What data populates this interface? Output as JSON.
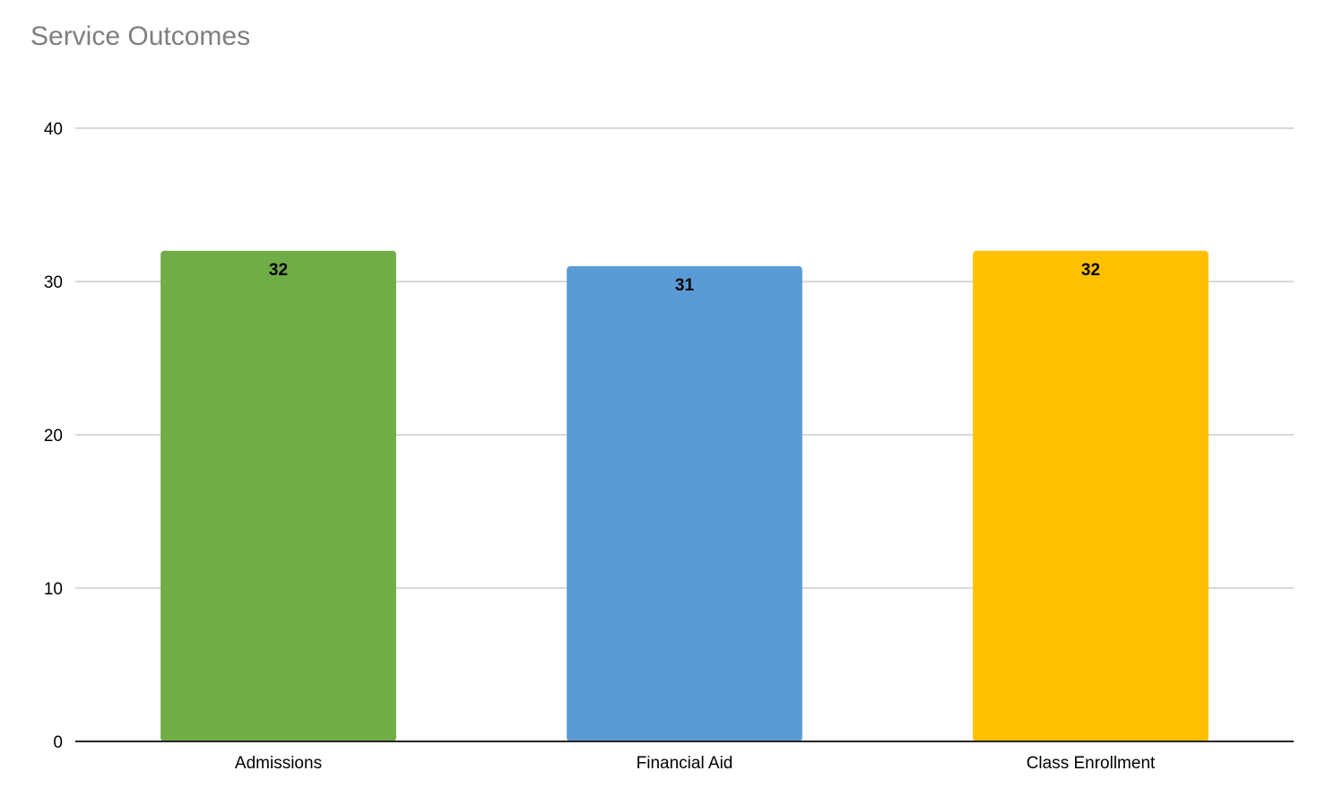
{
  "chart_data": {
    "type": "bar",
    "title": "Service Outcomes",
    "categories": [
      "Admissions",
      "Financial Aid",
      "Class Enrollment"
    ],
    "values": [
      32,
      31,
      32
    ],
    "colors": [
      "#70ad47",
      "#5b9bd5",
      "#ffc000"
    ],
    "ylim": [
      0,
      40
    ],
    "yticks": [
      "0",
      "10",
      "20",
      "30",
      "40"
    ],
    "grid": true,
    "legend": "none"
  }
}
